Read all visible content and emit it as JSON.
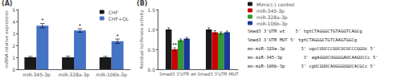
{
  "chart_data": [
    {
      "type": "bar",
      "title": "(A)",
      "categories": [
        "miR-345-3p",
        "miR-328a-3p",
        "miR-106b-3p"
      ],
      "series": [
        {
          "name": "CHF",
          "color": "#1a1a1a",
          "values": [
            1.0,
            1.0,
            1.0
          ],
          "errors": [
            0.08,
            0.1,
            0.08
          ]
        },
        {
          "name": "CHF+QL",
          "color": "#4472c4",
          "values": [
            3.65,
            3.25,
            2.35
          ],
          "errors": [
            0.18,
            0.15,
            0.18
          ],
          "annotations": [
            "*",
            "*",
            "*"
          ]
        }
      ],
      "ylabel": "miRNA relative expression",
      "ylim": [
        0,
        5
      ],
      "yticks": [
        0,
        1,
        2,
        3,
        4,
        5
      ],
      "grid": false,
      "legend": "upper right"
    },
    {
      "type": "bar",
      "title": "(B)",
      "categories": [
        "Smad3 3'UTR wt",
        "Smad3 3'UTR MUT"
      ],
      "series": [
        {
          "name": "Mimic(-) control",
          "color": "#1a1a1a",
          "values": [
            1.0,
            1.0
          ],
          "errors": [
            0.04,
            0.04
          ]
        },
        {
          "name": "miR-345-3p",
          "color": "#cc0000",
          "values": [
            0.5,
            0.93
          ],
          "errors": [
            0.04,
            0.04
          ],
          "annotations": [
            "**",
            null
          ]
        },
        {
          "name": "miR-328a-3p",
          "color": "#339933",
          "values": [
            0.73,
            0.91
          ],
          "errors": [
            0.03,
            0.03
          ]
        },
        {
          "name": "miR-106b-3p",
          "color": "#1a3a99",
          "values": [
            0.77,
            0.93
          ],
          "errors": [
            0.03,
            0.03
          ]
        }
      ],
      "ylabel": "Residual luciferase activity",
      "ylim": [
        0,
        1.5
      ],
      "yticks": [
        {
          "value": 0.0,
          "label": "0.0"
        },
        0.5,
        {
          "value": 1.0,
          "label": "1.0"
        },
        1.5
      ],
      "grid": false,
      "legend": "right",
      "annotations": [
        "Smad3 3'UTR wt    5' tgtCTAGGGCTGTAGGTCAGCg",
        "Smad3 3'UTR MUT 5' tgtCTAGGGCTGTCAAGTGGCg",
        "mo-miR-328a-3p      3' ugcCUUCCCGUCUCUCCCGGUc 5'",
        "mo-miR-345-3p        3' agAGGUCUGGGGAUCAAGUCCc 5'",
        "mo-miR-106b-3p      3' cgUCGUUCAUGGGUGUCACGCc 5'"
      ]
    }
  ]
}
